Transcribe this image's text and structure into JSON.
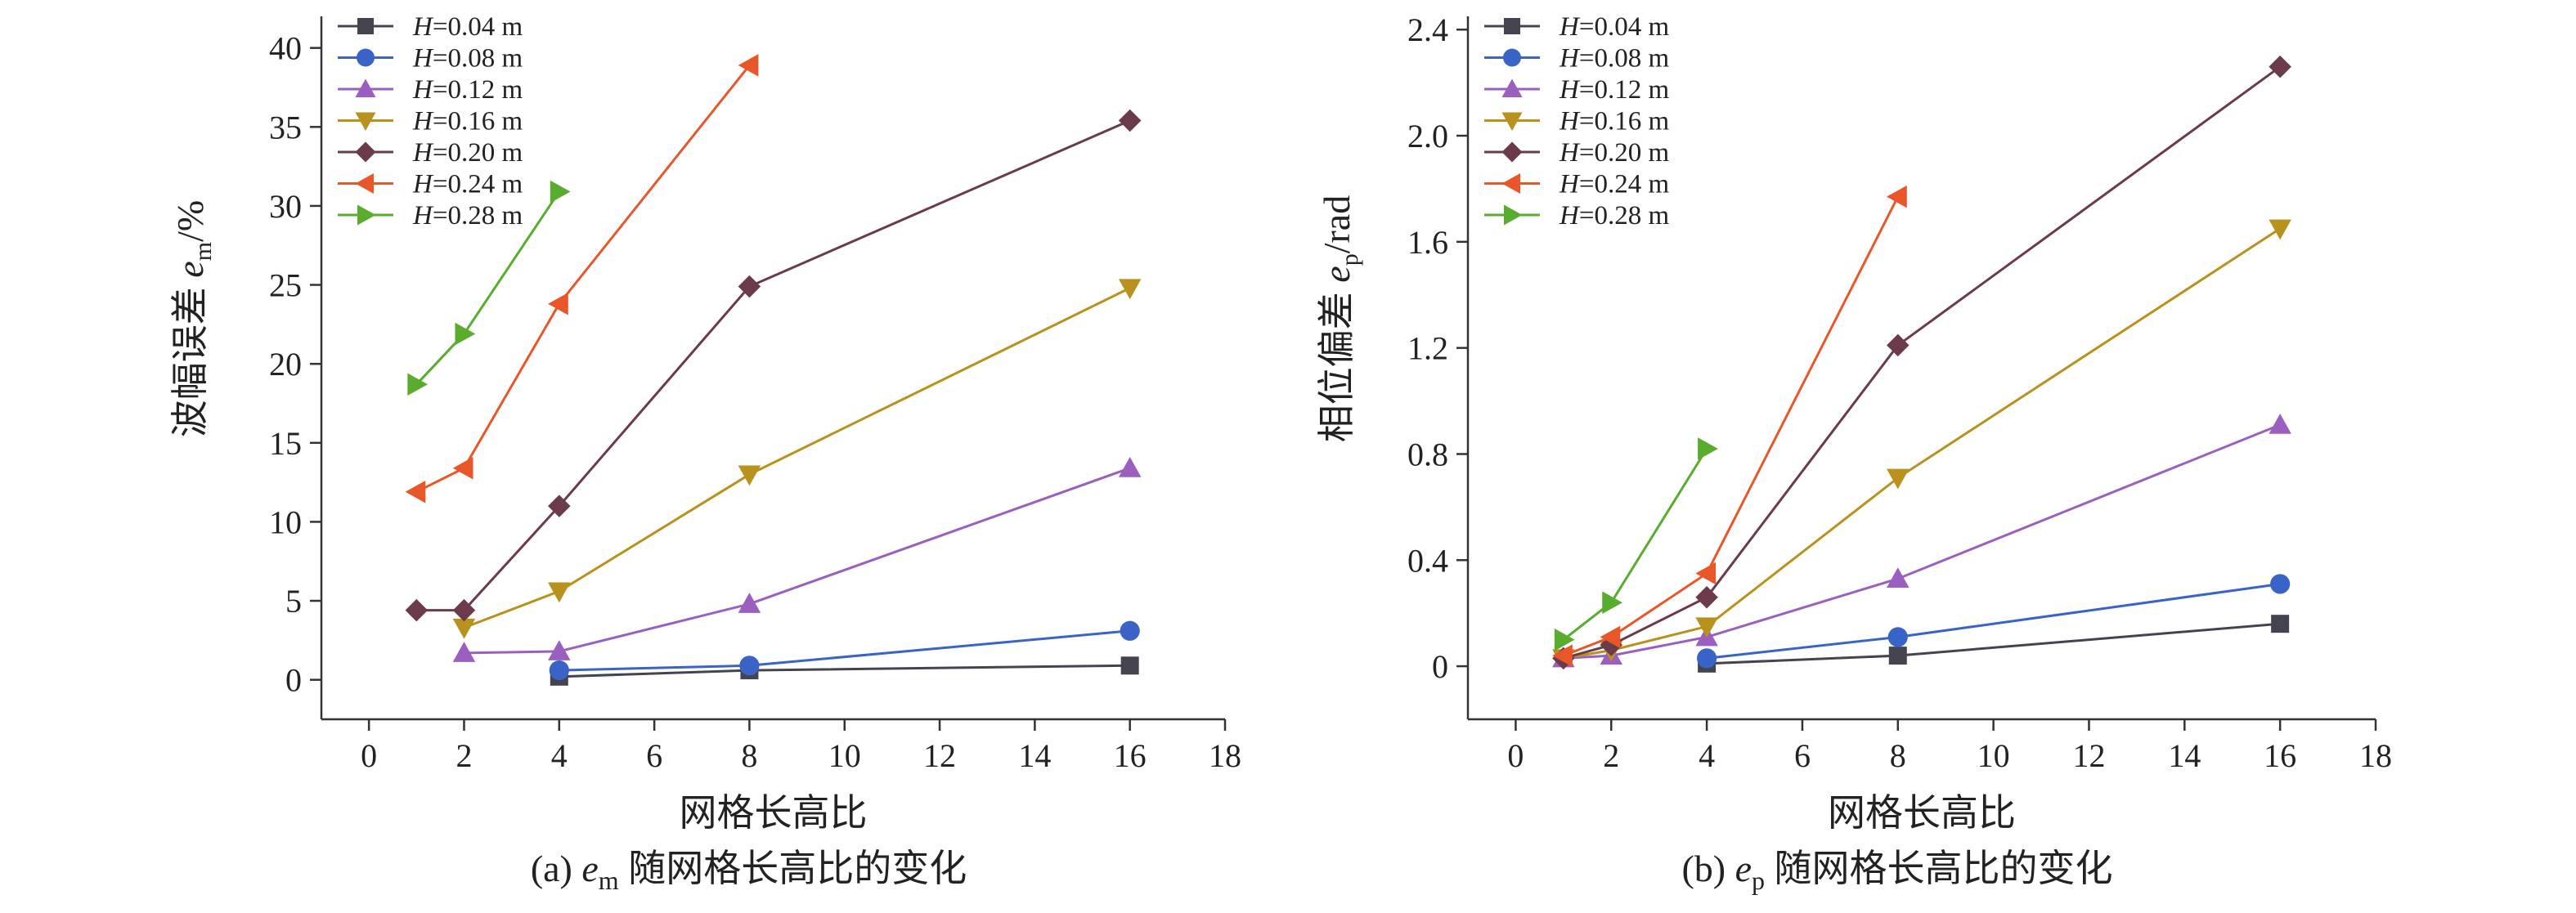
{
  "chart_data": [
    {
      "type": "line",
      "xlabel": "网格长高比",
      "ylabel_main": "波幅误差 ",
      "ylabel_var": "e",
      "ylabel_sub": "m",
      "ylabel_unit": "/%",
      "caption_prefix": "(a) ",
      "caption_var": "e",
      "caption_sub": "m",
      "caption_suffix": " 随网格长高比的变化",
      "xlim": [
        -1,
        18
      ],
      "ylim": [
        -2.5,
        42
      ],
      "xticks": [
        "0",
        "2",
        "4",
        "6",
        "8",
        "10",
        "12",
        "14",
        "16",
        "18"
      ],
      "yticks": [
        "0",
        "5",
        "10",
        "15",
        "20",
        "25",
        "30",
        "35",
        "40"
      ],
      "legend_position": "top-left",
      "series": [
        {
          "label_var": "H",
          "label_rest": "=0.04 m",
          "color": "#444450",
          "marker": "square",
          "points": [
            [
              4,
              0.2
            ],
            [
              8,
              0.6
            ],
            [
              16,
              0.9
            ]
          ]
        },
        {
          "label_var": "H",
          "label_rest": "=0.08 m",
          "color": "#3a63c7",
          "marker": "circle",
          "points": [
            [
              4,
              0.6
            ],
            [
              8,
              0.9
            ],
            [
              16,
              3.1
            ]
          ]
        },
        {
          "label_var": "H",
          "label_rest": "=0.12 m",
          "color": "#9b5fc0",
          "marker": "triangle-up",
          "points": [
            [
              2,
              1.7
            ],
            [
              4,
              1.8
            ],
            [
              8,
              4.8
            ],
            [
              16,
              13.4
            ]
          ]
        },
        {
          "label_var": "H",
          "label_rest": "=0.16 m",
          "color": "#b8921c",
          "marker": "triangle-down",
          "points": [
            [
              2,
              3.3
            ],
            [
              4,
              5.6
            ],
            [
              8,
              13.0
            ],
            [
              16,
              24.8
            ]
          ]
        },
        {
          "label_var": "H",
          "label_rest": "=0.20 m",
          "color": "#6b3a4b",
          "marker": "diamond",
          "points": [
            [
              1,
              4.4
            ],
            [
              2,
              4.4
            ],
            [
              4,
              11.0
            ],
            [
              8,
              24.9
            ],
            [
              16,
              35.4
            ]
          ]
        },
        {
          "label_var": "H",
          "label_rest": "=0.24 m",
          "color": "#e8562a",
          "marker": "triangle-left",
          "points": [
            [
              1,
              11.9
            ],
            [
              2,
              13.4
            ],
            [
              4,
              23.8
            ],
            [
              8,
              38.9
            ]
          ]
        },
        {
          "label_var": "H",
          "label_rest": "=0.28 m",
          "color": "#5aac2e",
          "marker": "triangle-right",
          "points": [
            [
              1,
              18.7
            ],
            [
              2,
              21.9
            ],
            [
              4,
              30.9
            ]
          ]
        }
      ]
    },
    {
      "type": "line",
      "xlabel": "网格长高比",
      "ylabel_main": "相位偏差 ",
      "ylabel_var": "e",
      "ylabel_sub": "p",
      "ylabel_unit": "/rad",
      "caption_prefix": "(b) ",
      "caption_var": "e",
      "caption_sub": "p",
      "caption_suffix": " 随网格长高比的变化",
      "xlim": [
        -1,
        18
      ],
      "ylim": [
        -0.2,
        2.45
      ],
      "xticks": [
        "0",
        "2",
        "4",
        "6",
        "8",
        "10",
        "12",
        "14",
        "16",
        "18"
      ],
      "yticks": [
        "0",
        "0.4",
        "0.8",
        "1.2",
        "1.6",
        "2.0",
        "2.4"
      ],
      "legend_position": "top-left",
      "series": [
        {
          "label_var": "H",
          "label_rest": "=0.04 m",
          "color": "#444450",
          "marker": "square",
          "points": [
            [
              4,
              0.01
            ],
            [
              8,
              0.04
            ],
            [
              16,
              0.16
            ]
          ]
        },
        {
          "label_var": "H",
          "label_rest": "=0.08 m",
          "color": "#3a63c7",
          "marker": "circle",
          "points": [
            [
              4,
              0.03
            ],
            [
              8,
              0.11
            ],
            [
              16,
              0.31
            ]
          ]
        },
        {
          "label_var": "H",
          "label_rest": "=0.12 m",
          "color": "#9b5fc0",
          "marker": "triangle-up",
          "points": [
            [
              1,
              0.03
            ],
            [
              2,
              0.04
            ],
            [
              4,
              0.11
            ],
            [
              8,
              0.33
            ],
            [
              16,
              0.91
            ]
          ]
        },
        {
          "label_var": "H",
          "label_rest": "=0.16 m",
          "color": "#b8921c",
          "marker": "triangle-down",
          "points": [
            [
              1,
              0.03
            ],
            [
              2,
              0.06
            ],
            [
              4,
              0.15
            ],
            [
              8,
              0.71
            ],
            [
              16,
              1.65
            ]
          ]
        },
        {
          "label_var": "H",
          "label_rest": "=0.20 m",
          "color": "#6b3a4b",
          "marker": "diamond",
          "points": [
            [
              1,
              0.03
            ],
            [
              2,
              0.08
            ],
            [
              4,
              0.26
            ],
            [
              8,
              1.21
            ],
            [
              16,
              2.26
            ]
          ]
        },
        {
          "label_var": "H",
          "label_rest": "=0.24 m",
          "color": "#e8562a",
          "marker": "triangle-left",
          "points": [
            [
              1,
              0.04
            ],
            [
              2,
              0.11
            ],
            [
              4,
              0.35
            ],
            [
              8,
              1.77
            ]
          ]
        },
        {
          "label_var": "H",
          "label_rest": "=0.28 m",
          "color": "#5aac2e",
          "marker": "triangle-right",
          "points": [
            [
              1,
              0.1
            ],
            [
              2,
              0.24
            ],
            [
              4,
              0.82
            ]
          ]
        }
      ]
    }
  ]
}
